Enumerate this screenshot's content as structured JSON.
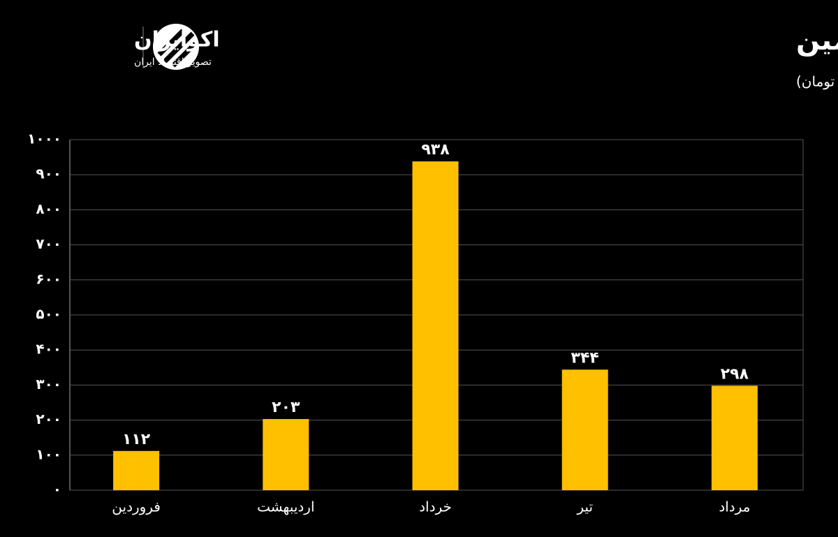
{
  "brand": {
    "name": "اکوایران",
    "tagline": "تصویر اقتصاد ایران"
  },
  "chart_data": {
    "type": "bar",
    "title": "مقدار فروش فاسمین",
    "subtitle": "(واحد: میلیارد تومان)",
    "categories": [
      "فروردین",
      "اردیبهشت",
      "خرداد",
      "تیر",
      "مرداد"
    ],
    "values": [
      112,
      203,
      938,
      344,
      298
    ],
    "value_labels": [
      "۱۱۲",
      "۲۰۳",
      "۹۳۸",
      "۳۴۴",
      "۲۹۸"
    ],
    "color": "#ffc000",
    "ylim": [
      0,
      1000
    ],
    "yticks": [
      {
        "value": 0,
        "label": "۰"
      },
      {
        "value": 100,
        "label": "۱۰۰"
      },
      {
        "value": 200,
        "label": "۲۰۰"
      },
      {
        "value": 300,
        "label": "۳۰۰"
      },
      {
        "value": 400,
        "label": "۴۰۰"
      },
      {
        "value": 500,
        "label": "۵۰۰"
      },
      {
        "value": 600,
        "label": "۶۰۰"
      },
      {
        "value": 700,
        "label": "۷۰۰"
      },
      {
        "value": 800,
        "label": "۸۰۰"
      },
      {
        "value": 900,
        "label": "۹۰۰"
      },
      {
        "value": 1000,
        "label": "۱۰۰۰"
      }
    ],
    "grid": true
  }
}
